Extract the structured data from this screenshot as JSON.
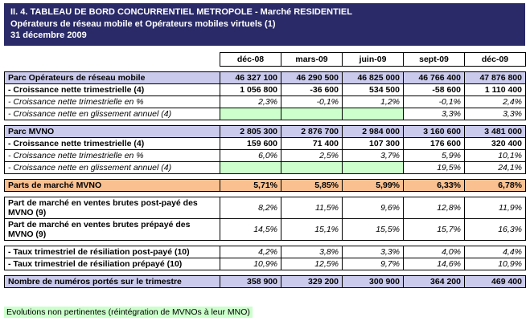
{
  "header": {
    "line1": "II. 4. TABLEAU DE BORD CONCURRENTIEL METROPOLE - Marché RESIDENTIEL",
    "line2": "Opérateurs de réseau mobile et Opérateurs mobiles virtuels (1)",
    "line3": "31 décembre  2009"
  },
  "columns": [
    "déc-08",
    "mars-09",
    "juin-09",
    "sept-09",
    "déc-09"
  ],
  "rows": [
    {
      "label": "Parc Opérateurs de réseau mobile",
      "cells": [
        "46 327 100",
        "46 290 500",
        "46 825 000",
        "46 766 400",
        "47 876 800"
      ]
    },
    {
      "label": "- Croissance nette trimestrielle (4)",
      "cells": [
        "1 056 800",
        "-36 600",
        "534 500",
        "-58 600",
        "1 110 400"
      ]
    },
    {
      "label": "- Croissance nette trimestrielle en %",
      "cells": [
        "2,3%",
        "-0,1%",
        "1,2%",
        "-0,1%",
        "2,4%"
      ]
    },
    {
      "label": "- Croissance nette en glissement annuel (4)",
      "cells": [
        "",
        "",
        "",
        "3,3%",
        "3,3%"
      ]
    },
    {
      "label": "Parc MVNO",
      "cells": [
        "2 805 300",
        "2 876 700",
        "2 984 000",
        "3 160 600",
        "3 481 000"
      ]
    },
    {
      "label": "- Croissance nette trimestrielle (4)",
      "cells": [
        "159 600",
        "71 400",
        "107 300",
        "176 600",
        "320 400"
      ]
    },
    {
      "label": "- Croissance nette trimestrielle en %",
      "cells": [
        "6,0%",
        "2,5%",
        "3,7%",
        "5,9%",
        "10,1%"
      ]
    },
    {
      "label": "- Croissance nette en glissement annuel (4)",
      "cells": [
        "",
        "",
        "",
        "19,5%",
        "24,1%"
      ]
    },
    {
      "label": "Parts de marché MVNO",
      "cells": [
        "5,71%",
        "5,85%",
        "5,99%",
        "6,33%",
        "6,78%"
      ]
    },
    {
      "label": "Part de marché en ventes brutes post-payé des MVNO (9)",
      "cells": [
        "8,2%",
        "11,5%",
        "9,6%",
        "12,8%",
        "11,9%"
      ]
    },
    {
      "label": "Part de marché en ventes brutes prépayé des MVNO (9)",
      "cells": [
        "14,5%",
        "15,1%",
        "15,5%",
        "15,7%",
        "16,3%"
      ]
    },
    {
      "label": "- Taux trimestriel de résiliation post-payé (10)",
      "cells": [
        "4,2%",
        "3,8%",
        "3,3%",
        "4,0%",
        "4,4%"
      ]
    },
    {
      "label": "- Taux trimestriel de résiliation prépayé (10)",
      "cells": [
        "10,9%",
        "12,5%",
        "9,7%",
        "14,6%",
        "10,9%"
      ]
    },
    {
      "label": "Nombre de numéros portés sur le trimestre",
      "cells": [
        "358 900",
        "329 200",
        "300 900",
        "364 200",
        "469 400"
      ]
    }
  ],
  "footer": {
    "note": "Evolutions non pertinentes (réintégration de MVNOs à leur MNO)"
  },
  "colors": {
    "banner_bg": "#2a2a68",
    "section_bg": "#cacaec",
    "highlight_bg": "#fac090",
    "green_bg": "#ccffcc"
  }
}
